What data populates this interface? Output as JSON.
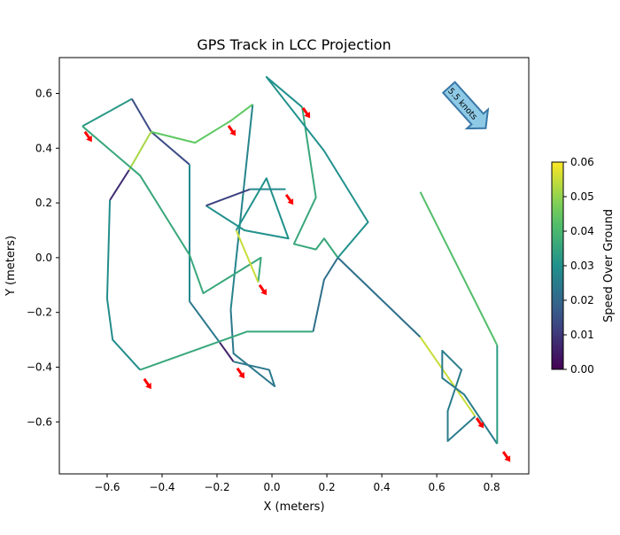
{
  "chart_data": {
    "type": "line",
    "title": "GPS Track in LCC Projection",
    "xlabel": "X (meters)",
    "ylabel": "Y (meters)",
    "xlim": [
      -0.774,
      0.935
    ],
    "ylim": [
      -0.79,
      0.731
    ],
    "xticks": [
      -0.6,
      -0.4,
      -0.2,
      0.0,
      0.2,
      0.4,
      0.6,
      0.8
    ],
    "xtick_labels": [
      "−0.6",
      "−0.4",
      "−0.2",
      "0.0",
      "0.2",
      "0.4",
      "0.6",
      "0.8"
    ],
    "yticks": [
      -0.6,
      -0.4,
      -0.2,
      0.0,
      0.2,
      0.4,
      0.6
    ],
    "ytick_labels": [
      "−0.6",
      "−0.4",
      "−0.2",
      "0.0",
      "0.2",
      "0.4",
      "0.6"
    ],
    "grid": false,
    "colormap": "viridis",
    "colorbar": {
      "label": "Speed Over Ground",
      "range": [
        0,
        0.06
      ],
      "ticks": [
        0,
        0.01,
        0.02,
        0.03,
        0.04,
        0.05,
        0.06
      ],
      "tick_labels": [
        "0.00",
        "0.01",
        "0.02",
        "0.03",
        "0.04",
        "0.05",
        "0.06"
      ]
    },
    "track_segments": [
      {
        "points": [
          [
            -0.69,
            0.48
          ],
          [
            -0.51,
            0.58
          ]
        ],
        "speed": 0.032
      },
      {
        "points": [
          [
            -0.51,
            0.58
          ],
          [
            -0.44,
            0.46
          ],
          [
            -0.3,
            0.34
          ]
        ],
        "speed": 0.014
      },
      {
        "points": [
          [
            -0.3,
            0.34
          ],
          [
            -0.3,
            -0.16
          ]
        ],
        "speed": 0.028
      },
      {
        "points": [
          [
            -0.3,
            -0.16
          ],
          [
            -0.19,
            -0.31
          ]
        ],
        "speed": 0.024
      },
      {
        "points": [
          [
            -0.19,
            -0.31
          ],
          [
            -0.14,
            -0.38
          ]
        ],
        "speed": 0.006
      },
      {
        "points": [
          [
            -0.14,
            -0.38
          ],
          [
            -0.01,
            -0.41
          ],
          [
            0.01,
            -0.47
          ],
          [
            -0.14,
            -0.35
          ],
          [
            -0.15,
            -0.19
          ]
        ],
        "speed": 0.024
      },
      {
        "points": [
          [
            -0.15,
            -0.19
          ],
          [
            -0.07,
            0.56
          ]
        ],
        "speed": 0.027
      },
      {
        "points": [
          [
            -0.07,
            0.56
          ],
          [
            -0.15,
            0.5
          ],
          [
            -0.28,
            0.42
          ],
          [
            -0.44,
            0.46
          ]
        ],
        "speed": 0.045
      },
      {
        "points": [
          [
            -0.44,
            0.46
          ],
          [
            -0.52,
            0.32
          ]
        ],
        "speed": 0.052
      },
      {
        "points": [
          [
            -0.52,
            0.32
          ],
          [
            -0.59,
            0.21
          ]
        ],
        "speed": 0.008
      },
      {
        "points": [
          [
            -0.59,
            0.21
          ],
          [
            -0.6,
            -0.15
          ],
          [
            -0.58,
            -0.3
          ],
          [
            -0.48,
            -0.41
          ]
        ],
        "speed": 0.029
      },
      {
        "points": [
          [
            -0.48,
            -0.41
          ],
          [
            -0.09,
            -0.27
          ],
          [
            0.15,
            -0.27
          ]
        ],
        "speed": 0.036
      },
      {
        "points": [
          [
            0.15,
            -0.27
          ],
          [
            0.19,
            -0.08
          ],
          [
            0.24,
            0.0
          ],
          [
            0.54,
            -0.29
          ]
        ],
        "speed": 0.022
      },
      {
        "points": [
          [
            0.54,
            -0.29
          ],
          [
            0.74,
            -0.58
          ]
        ],
        "speed": 0.055
      },
      {
        "points": [
          [
            0.74,
            -0.58
          ],
          [
            0.64,
            -0.67
          ],
          [
            0.64,
            -0.56
          ],
          [
            0.69,
            -0.41
          ],
          [
            0.62,
            -0.34
          ],
          [
            0.62,
            -0.44
          ],
          [
            0.7,
            -0.5
          ],
          [
            0.82,
            -0.68
          ]
        ],
        "speed": 0.025
      },
      {
        "points": [
          [
            0.82,
            -0.68
          ],
          [
            0.82,
            -0.32
          ]
        ],
        "speed": 0.033
      },
      {
        "points": [
          [
            0.82,
            -0.32
          ],
          [
            0.54,
            0.24
          ]
        ],
        "speed": 0.042
      },
      {
        "points": [
          [
            0.24,
            0.0
          ],
          [
            0.19,
            0.07
          ],
          [
            0.16,
            0.03
          ],
          [
            0.08,
            0.05
          ],
          [
            0.16,
            0.22
          ],
          [
            0.11,
            0.55
          ]
        ],
        "speed": 0.036
      },
      {
        "points": [
          [
            0.11,
            0.55
          ],
          [
            -0.02,
            0.66
          ],
          [
            0.19,
            0.39
          ],
          [
            0.35,
            0.13
          ],
          [
            0.24,
            0.0
          ]
        ],
        "speed": 0.03
      },
      {
        "points": [
          [
            -0.69,
            0.48
          ],
          [
            -0.48,
            0.3
          ],
          [
            -0.3,
            0.01
          ],
          [
            -0.25,
            -0.13
          ],
          [
            -0.04,
            0.0
          ],
          [
            -0.05,
            -0.09
          ]
        ],
        "speed": 0.036
      },
      {
        "points": [
          [
            -0.05,
            -0.09
          ],
          [
            -0.13,
            0.1
          ]
        ],
        "speed": 0.055
      },
      {
        "points": [
          [
            -0.13,
            0.1
          ],
          [
            -0.02,
            0.29
          ],
          [
            0.06,
            0.07
          ],
          [
            -0.1,
            0.1
          ],
          [
            -0.24,
            0.19
          ]
        ],
        "speed": 0.03
      },
      {
        "points": [
          [
            -0.24,
            0.19
          ],
          [
            -0.08,
            0.25
          ]
        ],
        "speed": 0.012
      },
      {
        "points": [
          [
            -0.08,
            0.25
          ],
          [
            0.05,
            0.25
          ]
        ],
        "speed": 0.028
      }
    ],
    "heading_arrows": [
      [
        -0.681,
        0.46
      ],
      [
        -0.158,
        0.482
      ],
      [
        0.113,
        0.547
      ],
      [
        0.052,
        0.23
      ],
      [
        -0.045,
        -0.1
      ],
      [
        -0.465,
        -0.443
      ],
      [
        -0.126,
        -0.404
      ],
      [
        0.745,
        -0.586
      ],
      [
        0.842,
        -0.709
      ]
    ],
    "annotation": {
      "text": "5.5 knots",
      "color": "#8ecae6",
      "edge_color": "#3a78a8"
    },
    "arrow_color": "#ff0000"
  }
}
